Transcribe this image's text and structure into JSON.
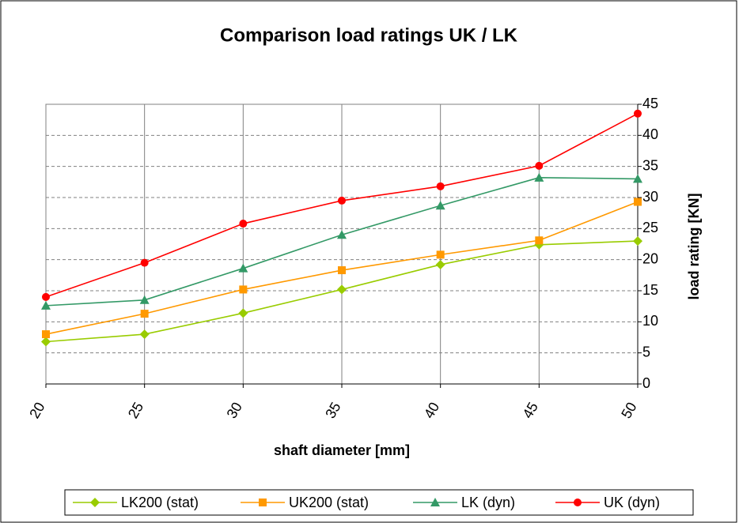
{
  "chart_data": {
    "type": "line",
    "title": "Comparison load ratings UK / LK",
    "x_label": "shaft diameter [mm]",
    "y_label": "load rating [KN]",
    "x": [
      20,
      25,
      30,
      35,
      40,
      45,
      50
    ],
    "xlim": [
      20,
      50
    ],
    "xticks": [
      20,
      25,
      30,
      35,
      40,
      45,
      50
    ],
    "ylim": [
      0,
      45
    ],
    "yticks": [
      0,
      5,
      10,
      15,
      20,
      25,
      30,
      35,
      40,
      45
    ],
    "grid": true,
    "y_axis_side": "right",
    "legend": "bottom",
    "series": [
      {
        "name": "LK200 (stat)",
        "color": "#99cc00",
        "marker": "diamond",
        "values": [
          6.8,
          8,
          11.4,
          15.2,
          19.2,
          22.4,
          23
        ]
      },
      {
        "name": "UK200 (stat)",
        "color": "#ff9900",
        "marker": "square",
        "values": [
          8,
          11.3,
          15.2,
          18.3,
          20.8,
          23.1,
          29.3
        ]
      },
      {
        "name": "LK (dyn)",
        "color": "#339966",
        "marker": "triangle",
        "values": [
          12.6,
          13.5,
          18.6,
          24,
          28.7,
          33.2,
          33
        ]
      },
      {
        "name": "UK (dyn)",
        "color": "#ff0000",
        "marker": "circle",
        "values": [
          14,
          19.5,
          25.8,
          29.5,
          31.8,
          35.1,
          43.5
        ]
      }
    ]
  }
}
